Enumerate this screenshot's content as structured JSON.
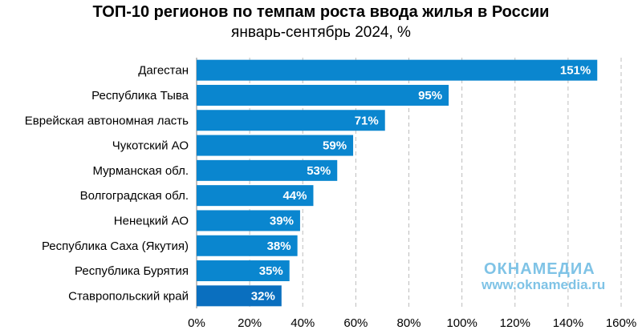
{
  "chart_data": {
    "type": "bar",
    "orientation": "horizontal",
    "title": "ТОП-10 регионов по темпам роста ввода жилья в России",
    "subtitle": "январь-сентябрь 2024, %",
    "categories": [
      "Дагестан",
      "Республика Тыва",
      "Еврейская автономная ласть",
      "Чукотский АО",
      "Мурманская обл.",
      "Волгоградская обл.",
      "Ненецкий АО",
      "Республика Саха (Якутия)",
      "Республика Бурятия",
      "Ставропольский край"
    ],
    "values": [
      151,
      95,
      71,
      59,
      53,
      44,
      39,
      38,
      35,
      32
    ],
    "value_labels": [
      "151%",
      "95%",
      "71%",
      "59%",
      "53%",
      "44%",
      "39%",
      "38%",
      "35%",
      "32%"
    ],
    "xlim": [
      0,
      160
    ],
    "x_ticks": [
      "0%",
      "20%",
      "40%",
      "60%",
      "80%",
      "100%",
      "120%",
      "140%",
      "160%"
    ],
    "grid": "vertical dashed",
    "colors": {
      "bar": "#0a86cf",
      "bar_last": "#0a6fbf",
      "grid": "#bdbdbd"
    }
  },
  "watermark": {
    "logo": "ОКНАМЕДИА",
    "url": "www.oknamedia.ru"
  }
}
